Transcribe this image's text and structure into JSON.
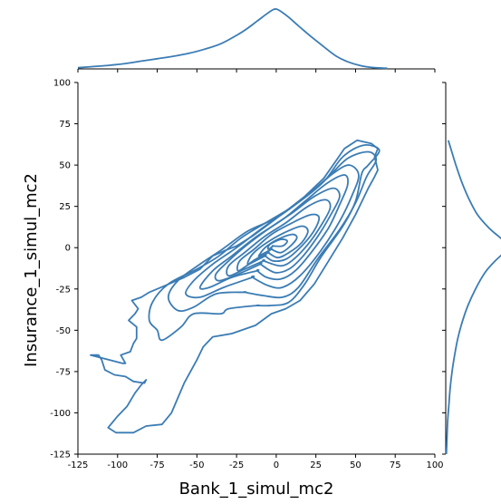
{
  "chart_data": {
    "type": "kde-jointplot",
    "xlabel": "Bank_1_simul_mc2",
    "ylabel": "Insurance_1_simul_mc2",
    "xlim": [
      -125,
      100
    ],
    "ylim": [
      -125,
      100
    ],
    "xticks": [
      -125,
      -100,
      -75,
      -50,
      -25,
      0,
      25,
      50,
      75,
      100
    ],
    "yticks": [
      -125,
      -100,
      -75,
      -50,
      -25,
      0,
      25,
      50,
      75,
      100
    ],
    "grid": false,
    "line_color": "#3b7cb4",
    "contours": [
      [
        [
          -12,
          -35
        ],
        [
          -30,
          -37
        ],
        [
          -35,
          -40
        ],
        [
          -52,
          -40
        ],
        [
          -60,
          -48
        ],
        [
          -72,
          -56
        ],
        [
          -75,
          -50
        ],
        [
          -80,
          -44
        ],
        [
          -78,
          -33
        ],
        [
          -68,
          -22
        ],
        [
          -50,
          -13
        ],
        [
          -36,
          -5
        ],
        [
          -22,
          6
        ],
        [
          -5,
          16
        ],
        [
          12,
          26
        ],
        [
          30,
          40
        ],
        [
          42,
          55
        ],
        [
          55,
          62
        ],
        [
          65,
          59
        ],
        [
          58,
          50
        ],
        [
          54,
          45
        ],
        [
          50,
          28
        ],
        [
          42,
          13
        ],
        [
          28,
          -6
        ],
        [
          18,
          -22
        ],
        [
          8,
          -33
        ],
        [
          -3,
          -35
        ],
        [
          -12,
          -35
        ]
      ],
      [
        [
          -20,
          -27
        ],
        [
          -38,
          -28
        ],
        [
          -52,
          -36
        ],
        [
          -62,
          -38
        ],
        [
          -68,
          -30
        ],
        [
          -62,
          -20
        ],
        [
          -48,
          -10
        ],
        [
          -34,
          -1
        ],
        [
          -18,
          10
        ],
        [
          0,
          18
        ],
        [
          16,
          29
        ],
        [
          32,
          42
        ],
        [
          45,
          54
        ],
        [
          58,
          58
        ],
        [
          63,
          53
        ],
        [
          57,
          43
        ],
        [
          50,
          27
        ],
        [
          40,
          11
        ],
        [
          26,
          -7
        ],
        [
          14,
          -24
        ],
        [
          4,
          -30
        ],
        [
          -8,
          -29
        ],
        [
          -20,
          -27
        ]
      ],
      [
        [
          -15,
          -18
        ],
        [
          -33,
          -24
        ],
        [
          -48,
          -30
        ],
        [
          -57,
          -28
        ],
        [
          -52,
          -20
        ],
        [
          -40,
          -10
        ],
        [
          -25,
          0
        ],
        [
          -10,
          11
        ],
        [
          6,
          22
        ],
        [
          20,
          32
        ],
        [
          36,
          45
        ],
        [
          46,
          50
        ],
        [
          52,
          44
        ],
        [
          48,
          32
        ],
        [
          40,
          16
        ],
        [
          28,
          -2
        ],
        [
          15,
          -17
        ],
        [
          4,
          -24
        ],
        [
          -5,
          -23
        ],
        [
          -15,
          -18
        ]
      ],
      [
        [
          -12,
          -14
        ],
        [
          -28,
          -18
        ],
        [
          -42,
          -24
        ],
        [
          -48,
          -24
        ],
        [
          -40,
          -14
        ],
        [
          -28,
          -5
        ],
        [
          -12,
          7
        ],
        [
          4,
          17
        ],
        [
          18,
          28
        ],
        [
          32,
          39
        ],
        [
          43,
          44
        ],
        [
          45,
          38
        ],
        [
          40,
          26
        ],
        [
          33,
          12
        ],
        [
          22,
          -3
        ],
        [
          12,
          -14
        ],
        [
          3,
          -19
        ],
        [
          -6,
          -18
        ],
        [
          -12,
          -14
        ]
      ],
      [
        [
          -10,
          -10
        ],
        [
          -24,
          -16
        ],
        [
          -36,
          -20
        ],
        [
          -38,
          -16
        ],
        [
          -30,
          -8
        ],
        [
          -18,
          2
        ],
        [
          -4,
          12
        ],
        [
          10,
          21
        ],
        [
          24,
          31
        ],
        [
          36,
          36
        ],
        [
          40,
          31
        ],
        [
          35,
          21
        ],
        [
          27,
          8
        ],
        [
          17,
          -5
        ],
        [
          8,
          -13
        ],
        [
          -1,
          -15
        ],
        [
          -10,
          -10
        ]
      ],
      [
        [
          -8,
          -8
        ],
        [
          -20,
          -13
        ],
        [
          -30,
          -17
        ],
        [
          -30,
          -11
        ],
        [
          -20,
          -3
        ],
        [
          -7,
          7
        ],
        [
          6,
          15
        ],
        [
          20,
          25
        ],
        [
          31,
          29
        ],
        [
          34,
          24
        ],
        [
          28,
          13
        ],
        [
          20,
          2
        ],
        [
          11,
          -7
        ],
        [
          3,
          -11
        ],
        [
          -8,
          -8
        ]
      ],
      [
        [
          -7,
          -5
        ],
        [
          -17,
          -10
        ],
        [
          -24,
          -14
        ],
        [
          -23,
          -8
        ],
        [
          -14,
          -1
        ],
        [
          -3,
          8
        ],
        [
          10,
          15
        ],
        [
          22,
          20
        ],
        [
          27,
          18
        ],
        [
          23,
          9
        ],
        [
          14,
          -1
        ],
        [
          6,
          -7
        ],
        [
          -2,
          -8
        ],
        [
          -7,
          -5
        ]
      ],
      [
        [
          -5,
          -3
        ],
        [
          -13,
          -7
        ],
        [
          -18,
          -10
        ],
        [
          -15,
          -4
        ],
        [
          -6,
          3
        ],
        [
          5,
          9
        ],
        [
          16,
          13
        ],
        [
          20,
          10
        ],
        [
          16,
          3
        ],
        [
          8,
          -3
        ],
        [
          1,
          -6
        ],
        [
          -5,
          -3
        ]
      ],
      [
        [
          -3,
          -1
        ],
        [
          -9,
          -4
        ],
        [
          -11,
          -5
        ],
        [
          -7,
          0
        ],
        [
          1,
          5
        ],
        [
          10,
          8
        ],
        [
          13,
          6
        ],
        [
          9,
          1
        ],
        [
          3,
          -3
        ],
        [
          -3,
          -1
        ]
      ],
      [
        [
          -2,
          1
        ],
        [
          -5,
          -1
        ],
        [
          -4,
          2
        ],
        [
          3,
          5
        ],
        [
          7,
          4
        ],
        [
          4,
          1
        ],
        [
          -2,
          1
        ]
      ]
    ],
    "outer_contour": [
      [
        -95,
        -70
      ],
      [
        -98,
        -65
      ],
      [
        -92,
        -63
      ],
      [
        -90,
        -58
      ],
      [
        -88,
        -55
      ],
      [
        -88,
        -48
      ],
      [
        -93,
        -44
      ],
      [
        -89,
        -40
      ],
      [
        -87,
        -37
      ],
      [
        -91,
        -32
      ],
      [
        -85,
        -30
      ],
      [
        -80,
        -27
      ],
      [
        -70,
        -23
      ],
      [
        -58,
        -18
      ],
      [
        -48,
        -13
      ],
      [
        -40,
        -5
      ],
      [
        -33,
        -2
      ],
      [
        -25,
        1
      ],
      [
        -15,
        7
      ],
      [
        -5,
        14
      ],
      [
        6,
        22
      ],
      [
        18,
        31
      ],
      [
        30,
        42
      ],
      [
        38,
        53
      ],
      [
        43,
        60
      ],
      [
        51,
        65
      ],
      [
        60,
        63
      ],
      [
        64,
        60
      ],
      [
        62,
        55
      ],
      [
        64,
        47
      ],
      [
        62,
        43
      ],
      [
        58,
        36
      ],
      [
        55,
        30
      ],
      [
        50,
        20
      ],
      [
        42,
        6
      ],
      [
        33,
        -8
      ],
      [
        24,
        -22
      ],
      [
        15,
        -32
      ],
      [
        6,
        -37
      ],
      [
        -3,
        -40
      ],
      [
        -13,
        -47
      ],
      [
        -28,
        -52
      ],
      [
        -40,
        -54
      ],
      [
        -46,
        -60
      ],
      [
        -50,
        -68
      ],
      [
        -58,
        -82
      ],
      [
        -66,
        -100
      ],
      [
        -72,
        -107
      ],
      [
        -82,
        -108
      ],
      [
        -90,
        -112
      ],
      [
        -101,
        -112
      ],
      [
        -106,
        -109
      ],
      [
        -100,
        -102
      ],
      [
        -94,
        -96
      ],
      [
        -89,
        -88
      ],
      [
        -85,
        -83
      ],
      [
        -82,
        -80
      ],
      [
        -83,
        -82
      ],
      [
        -90,
        -81
      ],
      [
        -95,
        -78
      ],
      [
        -102,
        -77
      ],
      [
        -108,
        -74
      ],
      [
        -110,
        -68
      ],
      [
        -112,
        -65
      ],
      [
        -117,
        -65
      ],
      [
        -105,
        -68
      ],
      [
        -97,
        -70
      ],
      [
        -95,
        -70
      ]
    ],
    "marginal_x": {
      "x": [
        -125,
        -115,
        -105,
        -95,
        -85,
        -75,
        -65,
        -55,
        -45,
        -35,
        -25,
        -18,
        -12,
        -6,
        -2,
        0,
        3,
        8,
        14,
        22,
        30,
        38,
        46,
        54,
        62,
        70
      ],
      "density": [
        0.02,
        0.04,
        0.06,
        0.09,
        0.13,
        0.17,
        0.21,
        0.26,
        0.33,
        0.42,
        0.56,
        0.68,
        0.8,
        0.92,
        0.99,
        1.0,
        0.96,
        0.86,
        0.72,
        0.54,
        0.37,
        0.21,
        0.11,
        0.05,
        0.02,
        0.01
      ]
    },
    "marginal_y": {
      "y": [
        -125,
        -115,
        -105,
        -95,
        -85,
        -75,
        -65,
        -55,
        -45,
        -35,
        -25,
        -15,
        -8,
        -3,
        0,
        2,
        6,
        12,
        20,
        30,
        40,
        50,
        60,
        65
      ],
      "density": [
        0.01,
        0.02,
        0.03,
        0.05,
        0.07,
        0.1,
        0.14,
        0.19,
        0.26,
        0.35,
        0.47,
        0.62,
        0.78,
        0.92,
        0.99,
        0.98,
        0.86,
        0.68,
        0.5,
        0.36,
        0.25,
        0.16,
        0.08,
        0.04
      ]
    }
  }
}
